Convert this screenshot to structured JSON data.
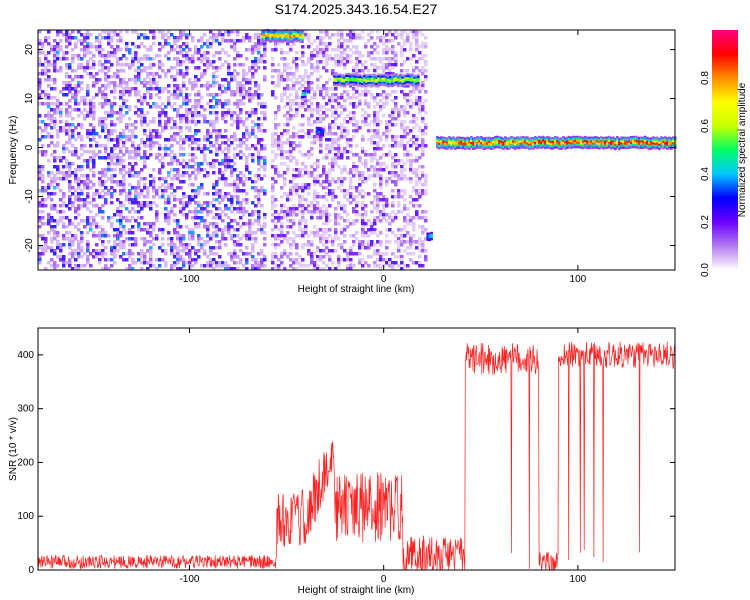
{
  "figure": {
    "title": "S174.2025.343.16.54.E27"
  },
  "chart_data": [
    {
      "type": "heatmap",
      "name": "spectrogram",
      "xlabel": "Height of straight line (km)",
      "ylabel": "Frequency (Hz)",
      "xlim": [
        -178,
        150
      ],
      "ylim": [
        -25,
        24
      ],
      "xticks": [
        -100,
        0,
        100
      ],
      "yticks": [
        -20,
        -10,
        0,
        10,
        20
      ],
      "colorbar": {
        "label": "Normalized spectral amplitude",
        "range": [
          0,
          1
        ],
        "ticks": [
          "0.0",
          "0.2",
          "0.4",
          "0.6",
          "0.8"
        ],
        "colors": [
          "#ffffff",
          "#b57bee",
          "#6a00ff",
          "#0000ff",
          "#00c8ff",
          "#00ff64",
          "#c8ff00",
          "#ffff00",
          "#ff8c00",
          "#ff0000",
          "#ff0080"
        ]
      },
      "features": [
        {
          "kind": "noise-speckle",
          "x_range": [
            -178,
            -62
          ],
          "f_range": [
            -25,
            24
          ],
          "level": 0.15
        },
        {
          "kind": "noise-speckle",
          "x_range": [
            -58,
            22
          ],
          "f_range": [
            -25,
            24
          ],
          "level": 0.1
        },
        {
          "kind": "tone",
          "x_range": [
            -63,
            -42
          ],
          "freq": 23,
          "peak": 0.9
        },
        {
          "kind": "tone",
          "x_range": [
            -42,
            -40
          ],
          "freq": 11,
          "peak": 0.55
        },
        {
          "kind": "tone",
          "x_range": [
            -26,
            18
          ],
          "freq": 14,
          "peak": 0.75
        },
        {
          "kind": "tone",
          "x_range": [
            -35,
            -31
          ],
          "freq": 3.5,
          "peak": 0.45
        },
        {
          "kind": "tone",
          "x_range": [
            22,
            25
          ],
          "freq": -18,
          "peak": 0.5
        },
        {
          "kind": "tone",
          "x_range": [
            27,
            150
          ],
          "freq": 1.2,
          "peak": 1.0
        }
      ]
    },
    {
      "type": "line",
      "name": "snr",
      "xlabel": "Height of straight line (km)",
      "ylabel": "SNR (10 * v/v)",
      "xlim": [
        -178,
        150
      ],
      "ylim": [
        0,
        450
      ],
      "xticks": [
        -100,
        0,
        100
      ],
      "yticks": [
        0,
        100,
        200,
        300,
        400
      ],
      "color": "#ff2020",
      "segments": [
        {
          "x_range": [
            -178,
            -55
          ],
          "base": 10,
          "noise": 25
        },
        {
          "x_range": [
            -55,
            -25
          ],
          "base": 70,
          "noise": 110,
          "peak": 240,
          "peak_at": -28
        },
        {
          "x_range": [
            -25,
            10
          ],
          "base": 90,
          "noise": 130
        },
        {
          "x_range": [
            10,
            42
          ],
          "base": 15,
          "noise": 70
        },
        {
          "x_range": [
            42,
            80
          ],
          "base": 380,
          "noise": 60,
          "dips_to": 0
        },
        {
          "x_range": [
            80,
            90
          ],
          "base": 5,
          "noise": 40
        },
        {
          "x_range": [
            90,
            150
          ],
          "base": 390,
          "noise": 50,
          "dips_to": 0
        }
      ]
    }
  ]
}
